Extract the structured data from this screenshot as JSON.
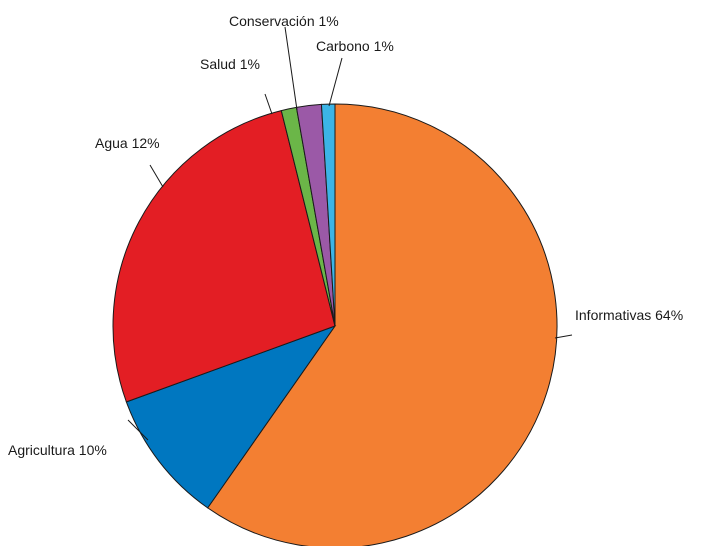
{
  "chart_data": {
    "type": "pie",
    "title": "",
    "slices": [
      {
        "label": "Informativas 64%",
        "value": 64,
        "color": "#f37f32"
      },
      {
        "label": "Agricultura 10%",
        "value": 10,
        "color": "#0077c0"
      },
      {
        "label": "Agua 12%",
        "value": 12,
        "color": "#e31e24"
      },
      {
        "label": "Salud 1%",
        "value": 1,
        "color": "#6bb648"
      },
      {
        "label": "Conservación 1%",
        "value": 1,
        "color": "#9b59a7"
      },
      {
        "label": "Carbono 1%",
        "value": 1,
        "color": "#3cb4e6"
      }
    ]
  }
}
